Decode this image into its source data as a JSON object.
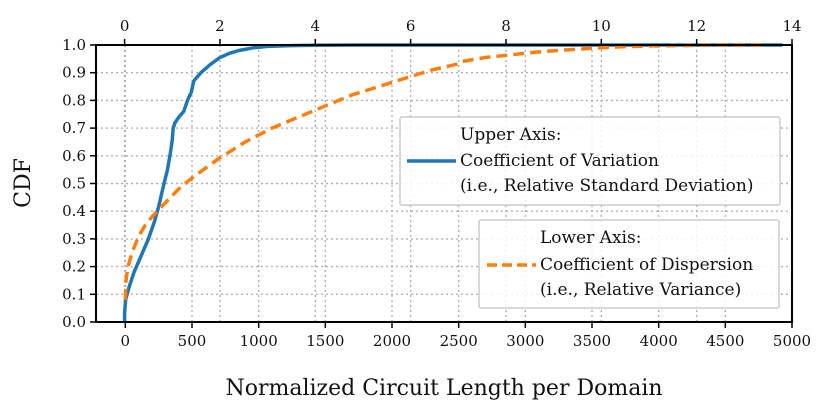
{
  "chart_data": {
    "type": "line",
    "title": "",
    "ylabel": "CDF",
    "xlabel_bottom": "Normalized Circuit Length per Domain",
    "xlim_bottom": [
      -220,
      5000
    ],
    "xlim_top": [
      -0.6,
      14.0
    ],
    "ylim": [
      0.0,
      1.0
    ],
    "grid": true,
    "x_ticks_bottom": [
      0,
      500,
      1000,
      1500,
      2000,
      2500,
      3000,
      3500,
      4000,
      4500,
      5000
    ],
    "x_ticks_top": [
      0,
      2,
      4,
      6,
      8,
      10,
      12,
      14
    ],
    "y_ticks": [
      0.0,
      0.1,
      0.2,
      0.3,
      0.4,
      0.5,
      0.6,
      0.7,
      0.8,
      0.9,
      1.0
    ],
    "y_tick_labels": [
      "0.0",
      "0.1",
      "0.2",
      "0.3",
      "0.4",
      "0.5",
      "0.6",
      "0.7",
      "0.8",
      "0.9",
      "1.0"
    ],
    "series": [
      {
        "name": "Coefficient of Variation",
        "axis": "top",
        "color": "#1f77b4",
        "dash": "solid",
        "x": [
          0.0,
          0.0,
          0.02,
          0.1,
          0.2,
          0.35,
          0.5,
          0.62,
          0.72,
          0.8,
          0.9,
          0.97,
          1.0,
          1.02,
          1.06,
          1.14,
          1.24,
          1.32,
          1.4,
          1.45,
          1.6,
          1.8,
          2.0,
          2.2,
          2.4,
          2.7,
          3.0,
          3.5,
          4.0,
          5.0,
          6.0,
          8.0,
          10.0,
          13.0,
          13.8
        ],
        "y": [
          0.0,
          0.03,
          0.08,
          0.13,
          0.18,
          0.24,
          0.3,
          0.36,
          0.42,
          0.48,
          0.55,
          0.62,
          0.66,
          0.7,
          0.72,
          0.74,
          0.76,
          0.8,
          0.83,
          0.87,
          0.9,
          0.93,
          0.955,
          0.97,
          0.98,
          0.99,
          0.995,
          0.998,
          0.999,
          1.0,
          1.0,
          1.0,
          1.0,
          1.0,
          1.0
        ]
      },
      {
        "name": "Coefficient of Dispersion",
        "axis": "bottom",
        "color": "#ff7f0e",
        "dash": "dashed",
        "x": [
          0,
          5,
          20,
          50,
          100,
          150,
          200,
          300,
          400,
          500,
          700,
          900,
          1100,
          1300,
          1500,
          1700,
          1900,
          2100,
          2300,
          2480,
          2520,
          2700,
          2900,
          3100,
          3300,
          3500,
          3700,
          3900,
          4100,
          4300,
          4500,
          4700,
          4780
        ],
        "y": [
          0.08,
          0.15,
          0.2,
          0.25,
          0.31,
          0.35,
          0.38,
          0.43,
          0.48,
          0.52,
          0.59,
          0.65,
          0.7,
          0.74,
          0.78,
          0.82,
          0.85,
          0.88,
          0.91,
          0.93,
          0.94,
          0.955,
          0.965,
          0.975,
          0.982,
          0.988,
          0.993,
          0.996,
          0.998,
          0.999,
          1.0,
          1.0,
          1.0
        ]
      }
    ],
    "legend_upper": {
      "heading": "Upper Axis:",
      "label": "Coefficient of Variation",
      "note": "(i.e., Relative Standard Deviation)"
    },
    "legend_lower": {
      "heading": "Lower Axis:",
      "label": "Coefficient of Dispersion",
      "note": "(i.e., Relative Variance)"
    }
  }
}
